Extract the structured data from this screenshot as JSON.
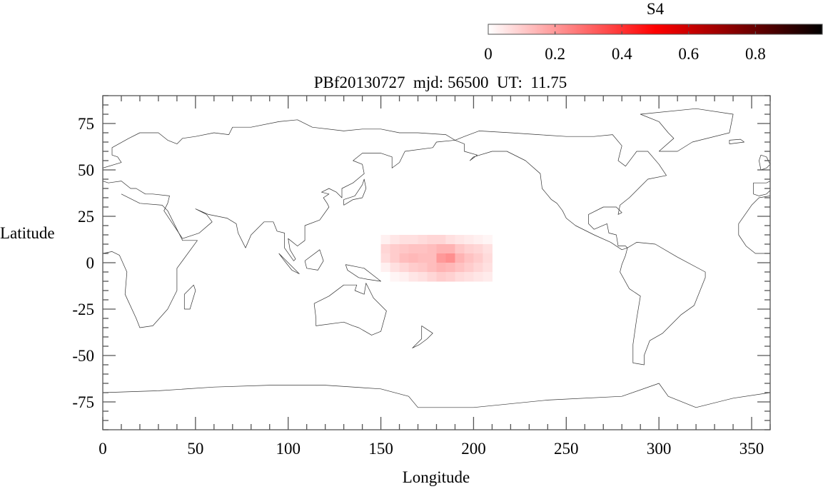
{
  "chart_data": {
    "type": "heatmap",
    "title": "PBf20130727  mjd: 56500  UT:  11.75",
    "xlabel": "Longitude",
    "ylabel": "Latitude",
    "xlim": [
      0,
      360
    ],
    "ylim": [
      -90,
      90
    ],
    "xticks": [
      "0",
      "50",
      "100",
      "150",
      "200",
      "250",
      "300",
      "350"
    ],
    "xtick_values": [
      0,
      50,
      100,
      150,
      200,
      250,
      300,
      350
    ],
    "yticks": [
      "75",
      "50",
      "25",
      "0",
      "-25",
      "-50",
      "-75"
    ],
    "ytick_values": [
      75,
      50,
      25,
      0,
      -25,
      -50,
      -75
    ],
    "background": "world coastline map",
    "colorbar": {
      "label": "S4",
      "range": [
        0,
        1
      ],
      "ticks": [
        "0",
        "0.2",
        "0.4",
        "0.6",
        "0.8"
      ],
      "tick_values": [
        0,
        0.2,
        0.4,
        0.6,
        0.8
      ],
      "colormap": [
        "#ffffff",
        "#ff0000",
        "#000000"
      ],
      "placement": "top-right"
    },
    "cell_size_deg": [
      5,
      5
    ],
    "lon_edges": [
      150,
      155,
      160,
      165,
      170,
      175,
      180,
      185,
      190,
      195,
      200,
      205,
      210
    ],
    "lat_edges": [
      15,
      10,
      5,
      0,
      -5,
      -10
    ],
    "values": [
      [
        0.03,
        0.05,
        0.06,
        0.06,
        0.07,
        0.08,
        0.08,
        0.06,
        0.05,
        0.04,
        0.03,
        0.02
      ],
      [
        0.08,
        0.1,
        0.11,
        0.12,
        0.12,
        0.13,
        0.15,
        0.15,
        0.11,
        0.09,
        0.08,
        0.06
      ],
      [
        0.07,
        0.1,
        0.13,
        0.14,
        0.13,
        0.13,
        0.2,
        0.22,
        0.15,
        0.12,
        0.1,
        0.07
      ],
      [
        0.03,
        0.06,
        0.08,
        0.1,
        0.11,
        0.13,
        0.15,
        0.14,
        0.12,
        0.1,
        0.08,
        0.06
      ],
      [
        0.0,
        0.02,
        0.03,
        0.05,
        0.06,
        0.08,
        0.1,
        0.09,
        0.07,
        0.06,
        0.05,
        0.04
      ]
    ]
  }
}
